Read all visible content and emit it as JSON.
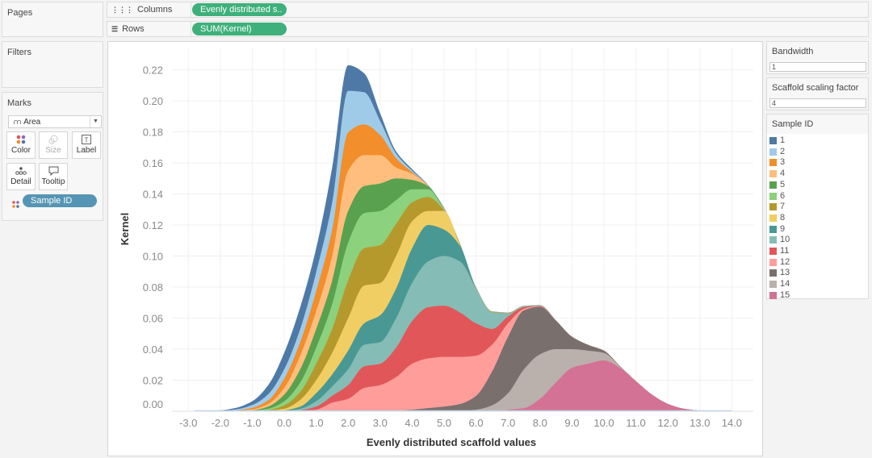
{
  "pages": {
    "title": "Pages"
  },
  "filters": {
    "title": "Filters"
  },
  "columns": {
    "label": "Columns",
    "pill": "Evenly distributed s.."
  },
  "rows": {
    "label": "Rows",
    "pill": "SUM(Kernel)"
  },
  "marks": {
    "title": "Marks",
    "type": "Area",
    "buttons": {
      "color": "Color",
      "size": "Size",
      "label": "Label",
      "detail": "Detail",
      "tooltip": "Tooltip"
    },
    "color_pill": "Sample ID"
  },
  "params": [
    {
      "title": "Bandwidth",
      "value": "1"
    },
    {
      "title": "Scaffold scaling factor",
      "value": "4"
    }
  ],
  "legend": {
    "title": "Sample ID"
  },
  "chart_data": {
    "type": "area",
    "stacked": true,
    "xlabel": "Evenly distributed scaffold values",
    "ylabel": "Kernel",
    "xlim": [
      -3,
      14
    ],
    "ylim": [
      0,
      0.23
    ],
    "grid": true,
    "xticks": [
      "-3.0",
      "-2.0",
      "-1.0",
      "0.0",
      "1.0",
      "2.0",
      "3.0",
      "4.0",
      "5.0",
      "6.0",
      "7.0",
      "8.0",
      "9.0",
      "10.0",
      "11.0",
      "12.0",
      "13.0",
      "14.0"
    ],
    "yticks": [
      "0.00",
      "0.02",
      "0.04",
      "0.06",
      "0.08",
      "0.10",
      "0.12",
      "0.14",
      "0.16",
      "0.18",
      "0.20",
      "0.22"
    ],
    "x": [
      -3,
      -2.5,
      -2,
      -1.5,
      -1,
      -0.5,
      0,
      0.5,
      1,
      1.5,
      2,
      2.5,
      3,
      3.5,
      4,
      4.5,
      5,
      5.5,
      6,
      6.5,
      7,
      7.5,
      8,
      8.5,
      9,
      9.5,
      10,
      10.5,
      11,
      11.5,
      12,
      12.5,
      13,
      13.5,
      14
    ],
    "series": [
      {
        "name": "1",
        "color": "#4e79a7",
        "values": [
          0,
          0.0002,
          0.0003,
          0.001,
          0.0024,
          0.0058,
          0.0106,
          0.014,
          0.0155,
          0.0225,
          0.0165,
          0.0122,
          0.005,
          0.0014,
          0.001,
          0.0002,
          0.0003,
          0.0002,
          0.0001,
          0.0001,
          0.0001,
          0.0001,
          0,
          0,
          0,
          0,
          0,
          0,
          0,
          0,
          0,
          0,
          0,
          0,
          0
        ]
      },
      {
        "name": "2",
        "color": "#a0cbe8",
        "values": [
          0,
          0,
          0.0002,
          0.0006,
          0.0018,
          0.004,
          0.006,
          0.0085,
          0.0121,
          0.0175,
          0.0268,
          0.0207,
          0.009,
          0.003,
          0.001,
          0.0002,
          0.0003,
          0.0002,
          0.0001,
          0.0001,
          0.0001,
          0.0001,
          0,
          0,
          0,
          0,
          0,
          0,
          0,
          0,
          0,
          0,
          0,
          0,
          0
        ]
      },
      {
        "name": "3",
        "color": "#f28e2b",
        "values": [
          0,
          0,
          0.0001,
          0.0003,
          0.001,
          0.0023,
          0.006,
          0.0087,
          0.013,
          0.017,
          0.0246,
          0.0198,
          0.013,
          0.006,
          0.001,
          0.0002,
          0.0003,
          0.0002,
          0.0001,
          0.0001,
          0.0001,
          0.0001,
          0,
          0,
          0,
          0,
          0,
          0,
          0,
          0,
          0,
          0,
          0,
          0,
          0
        ]
      },
      {
        "name": "4",
        "color": "#ffbe7d",
        "values": [
          0,
          0,
          0,
          0.0002,
          0.0006,
          0.0017,
          0.0043,
          0.0088,
          0.0114,
          0.016,
          0.026,
          0.02,
          0.0183,
          0.007,
          0.004,
          0.0002,
          0.0003,
          0.0002,
          0.0001,
          0.0001,
          0.0001,
          0.0001,
          0,
          0,
          0,
          0,
          0,
          0,
          0,
          0,
          0,
          0,
          0,
          0,
          0
        ]
      },
      {
        "name": "5",
        "color": "#59a14f",
        "values": [
          0,
          0,
          0,
          0.0001,
          0.0003,
          0.0014,
          0.0043,
          0.0085,
          0.012,
          0.015,
          0.0204,
          0.0174,
          0.0177,
          0.014,
          0.006,
          0.002,
          0.0003,
          0.0002,
          0.0001,
          0.0001,
          0.0001,
          0.0001,
          0,
          0,
          0,
          0,
          0,
          0,
          0,
          0,
          0,
          0,
          0,
          0,
          0
        ]
      },
      {
        "name": "6",
        "color": "#8cd17d",
        "values": [
          0,
          0,
          0,
          0,
          0.0002,
          0.0008,
          0.0026,
          0.006,
          0.0104,
          0.016,
          0.0243,
          0.0226,
          0.022,
          0.0153,
          0.0085,
          0.005,
          0.0003,
          0.0002,
          0.0001,
          0.0001,
          0.0001,
          0,
          0,
          0,
          0,
          0,
          0,
          0,
          0,
          0,
          0,
          0,
          0,
          0,
          0
        ]
      },
      {
        "name": "7",
        "color": "#b6992d",
        "values": [
          0,
          0,
          0,
          0,
          0.0001,
          0.0005,
          0.0022,
          0.0052,
          0.0106,
          0.0154,
          0.0243,
          0.0241,
          0.0244,
          0.0207,
          0.0121,
          0.009,
          0.0003,
          0.0002,
          0.0001,
          0.0001,
          0,
          0,
          0,
          0,
          0,
          0,
          0,
          0,
          0,
          0,
          0,
          0,
          0,
          0,
          0
        ]
      },
      {
        "name": "8",
        "color": "#f1ce63",
        "values": [
          0,
          0,
          0,
          0,
          0,
          0.0002,
          0.001,
          0.0043,
          0.0084,
          0.0139,
          0.021,
          0.0243,
          0.0208,
          0.021,
          0.0174,
          0.009,
          0.012,
          0.0002,
          0.0001,
          0.0001,
          0,
          0,
          0,
          0,
          0,
          0,
          0,
          0,
          0,
          0,
          0,
          0,
          0,
          0,
          0
        ]
      },
      {
        "name": "9",
        "color": "#499894",
        "values": [
          0,
          0,
          0,
          0,
          0,
          0.0001,
          0.0004,
          0.0015,
          0.0052,
          0.0077,
          0.012,
          0.0138,
          0.0173,
          0.019,
          0.0224,
          0.0235,
          0.017,
          0.0099,
          0.0001,
          0.0001,
          0,
          0,
          0,
          0,
          0,
          0,
          0,
          0,
          0,
          0,
          0,
          0,
          0,
          0,
          0
        ]
      },
      {
        "name": "10",
        "color": "#86bcb6",
        "values": [
          0,
          0,
          0,
          0,
          0,
          0,
          0.0001,
          0.0008,
          0.0034,
          0.0061,
          0.0102,
          0.0139,
          0.0139,
          0.019,
          0.0246,
          0.0295,
          0.032,
          0.0329,
          0.0225,
          0.0105,
          0.002,
          0.0005,
          0.0004,
          0,
          0,
          0,
          0,
          0,
          0,
          0,
          0,
          0,
          0,
          0,
          0
        ]
      },
      {
        "name": "11",
        "color": "#e15759",
        "values": [
          0,
          0,
          0,
          0,
          0,
          0,
          0.0001,
          0.0004,
          0.002,
          0.0044,
          0.0088,
          0.0139,
          0.0138,
          0.019,
          0.0274,
          0.033,
          0.033,
          0.0286,
          0.0208,
          0.0102,
          0.0044,
          0.001,
          0,
          0,
          0,
          0,
          0,
          0,
          0,
          0,
          0,
          0,
          0,
          0,
          0
        ]
      },
      {
        "name": "12",
        "color": "#ff9d9a",
        "values": [
          0,
          0,
          0,
          0,
          0,
          0,
          0,
          0.0003,
          0.001,
          0.0055,
          0.008,
          0.015,
          0.0168,
          0.0217,
          0.0296,
          0.032,
          0.032,
          0.0303,
          0.0259,
          0.0173,
          0.0086,
          0.001,
          0.0006,
          0,
          0,
          0,
          0,
          0,
          0,
          0,
          0,
          0,
          0,
          0,
          0
        ]
      },
      {
        "name": "13",
        "color": "#79706e",
        "values": [
          0,
          0,
          0,
          0,
          0,
          0,
          0,
          0,
          0,
          0,
          0,
          0,
          0,
          0.0003,
          0.001,
          0.002,
          0.003,
          0.0045,
          0.0089,
          0.0217,
          0.0364,
          0.038,
          0.0307,
          0.0184,
          0.008,
          0.0038,
          0.0014,
          0.0002,
          0,
          0,
          0,
          0,
          0,
          0,
          0
        ]
      },
      {
        "name": "14",
        "color": "#bab0ac",
        "values": [
          0,
          0,
          0,
          0,
          0,
          0,
          0,
          0,
          0,
          0,
          0,
          0,
          0,
          0,
          0,
          0,
          0,
          0.0002,
          0.001,
          0.0037,
          0.0106,
          0.025,
          0.0287,
          0.0215,
          0.012,
          0.0084,
          0.0049,
          0.0008,
          0.0002,
          0,
          0,
          0,
          0,
          0,
          0
        ]
      },
      {
        "name": "15",
        "color": "#d37295",
        "values": [
          0,
          0,
          0,
          0,
          0,
          0,
          0,
          0,
          0,
          0,
          0,
          0,
          0,
          0,
          0,
          0,
          0,
          0,
          0,
          0.0001,
          0.001,
          0.002,
          0.008,
          0.0185,
          0.028,
          0.0306,
          0.0327,
          0.028,
          0.0192,
          0.0107,
          0.0047,
          0.0016,
          0.0004,
          0.0001,
          0
        ]
      }
    ]
  }
}
